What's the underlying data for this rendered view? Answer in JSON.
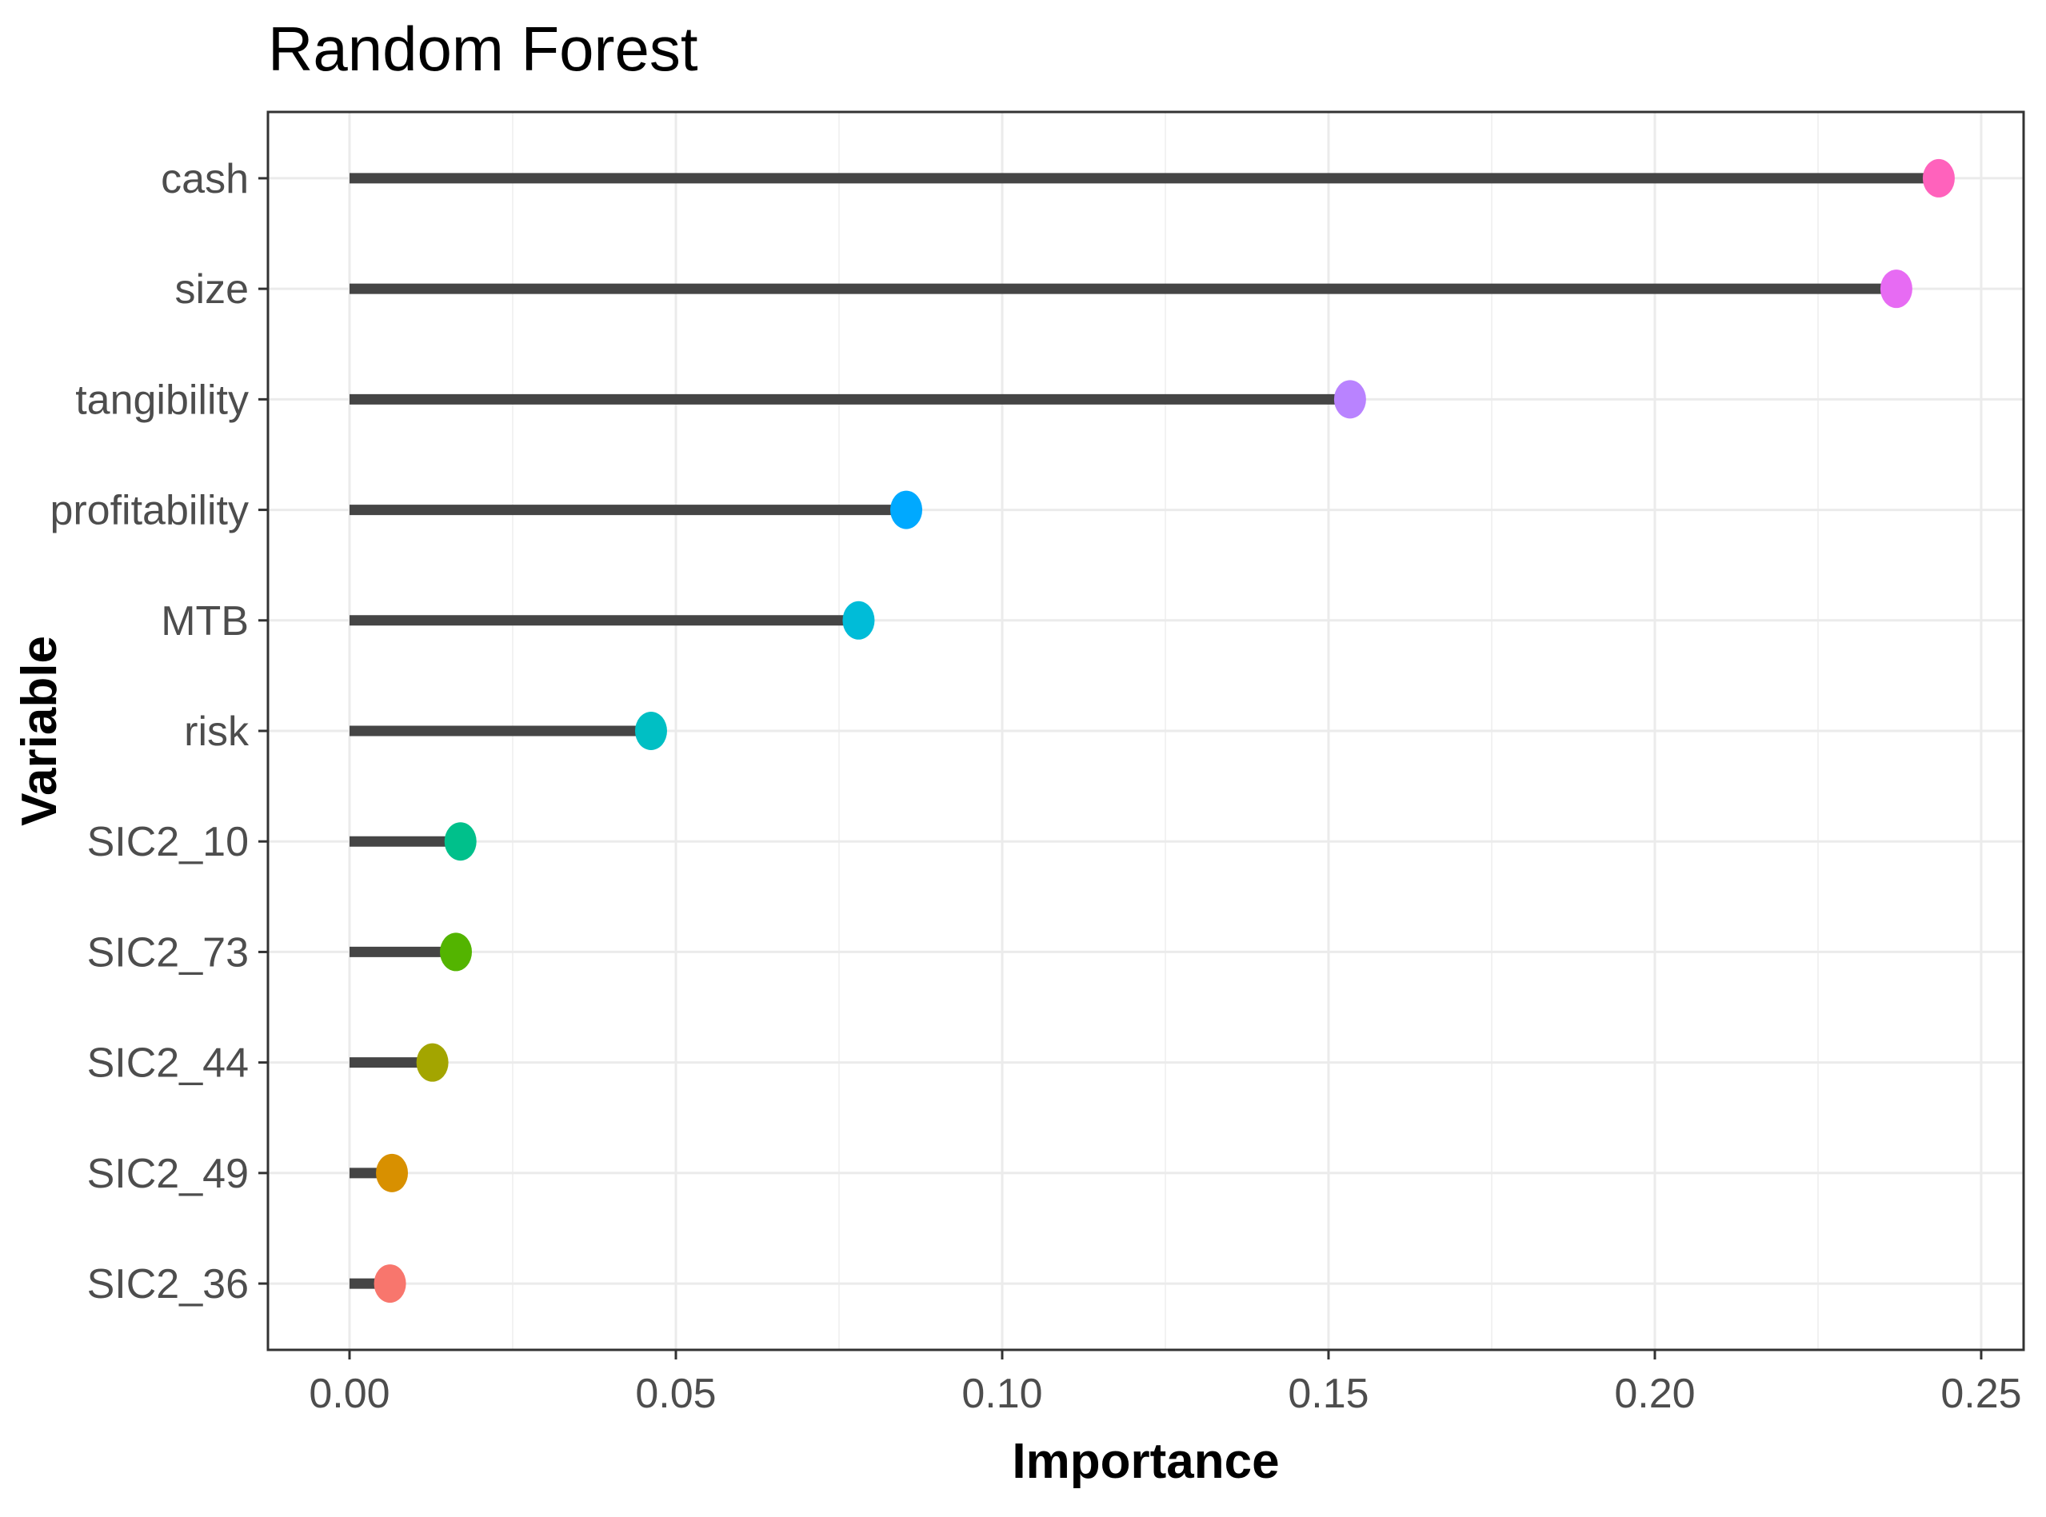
{
  "chart_data": {
    "type": "lollipop",
    "title": "Random Forest",
    "xlabel": "Importance",
    "ylabel": "Variable",
    "xlim": [
      -0.0125,
      0.2565
    ],
    "x_ticks": [
      0.0,
      0.05,
      0.1,
      0.15,
      0.2,
      0.25
    ],
    "x_tick_labels": [
      "0.00",
      "0.05",
      "0.10",
      "0.15",
      "0.20",
      "0.25"
    ],
    "grid": true,
    "legend": "none",
    "categories": [
      "cash",
      "size",
      "tangibility",
      "profitability",
      "MTB",
      "risk",
      "SIC2_10",
      "SIC2_73",
      "SIC2_44",
      "SIC2_49",
      "SIC2_36"
    ],
    "values": [
      0.2435,
      0.237,
      0.1533,
      0.0853,
      0.078,
      0.0462,
      0.017,
      0.0163,
      0.0127,
      0.0065,
      0.0062
    ],
    "colors": [
      "#FF62BC",
      "#E76BF3",
      "#B983FF",
      "#00A9FF",
      "#00BCD8",
      "#00BFC4",
      "#00C08B",
      "#53B400",
      "#A3A500",
      "#D89000",
      "#F8766D"
    ],
    "stem_color": "#454545"
  }
}
